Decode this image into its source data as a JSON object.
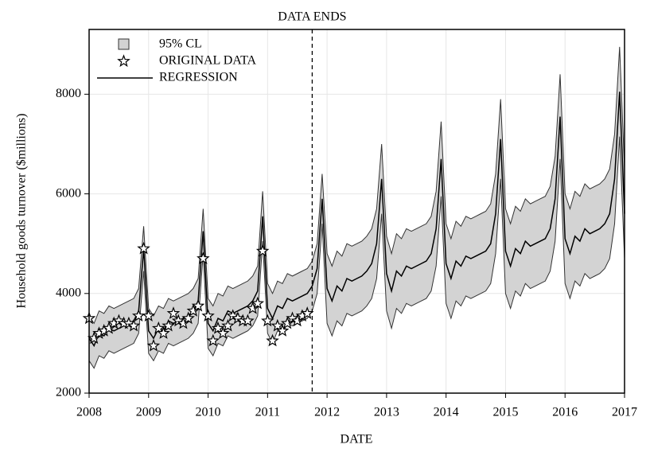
{
  "chart_data": {
    "type": "line",
    "x_label": "DATE",
    "y_label": "Household goods turnover ($millions)",
    "annotation": {
      "text": "DATA ENDS",
      "x": 2011.75
    },
    "xlim": [
      2008,
      2017
    ],
    "xticks": [
      2008,
      2009,
      2010,
      2011,
      2012,
      2013,
      2014,
      2015,
      2016,
      2017
    ],
    "ylim": [
      2000,
      9300
    ],
    "yticks": [
      2000,
      4000,
      6000,
      8000
    ],
    "grid": true,
    "x": [
      2008,
      2008.083,
      2008.167,
      2008.25,
      2008.333,
      2008.417,
      2008.5,
      2008.583,
      2008.667,
      2008.75,
      2008.833,
      2008.917,
      2009,
      2009.083,
      2009.167,
      2009.25,
      2009.333,
      2009.417,
      2009.5,
      2009.583,
      2009.667,
      2009.75,
      2009.833,
      2009.917,
      2010,
      2010.083,
      2010.167,
      2010.25,
      2010.333,
      2010.417,
      2010.5,
      2010.583,
      2010.667,
      2010.75,
      2010.833,
      2010.917,
      2011,
      2011.083,
      2011.167,
      2011.25,
      2011.333,
      2011.417,
      2011.5,
      2011.583,
      2011.667,
      2011.75,
      2011.833,
      2011.917,
      2012,
      2012.083,
      2012.167,
      2012.25,
      2012.333,
      2012.417,
      2012.5,
      2012.583,
      2012.667,
      2012.75,
      2012.833,
      2012.917,
      2013,
      2013.083,
      2013.167,
      2013.25,
      2013.333,
      2013.417,
      2013.5,
      2013.583,
      2013.667,
      2013.75,
      2013.833,
      2013.917,
      2014,
      2014.083,
      2014.167,
      2014.25,
      2014.333,
      2014.417,
      2014.5,
      2014.583,
      2014.667,
      2014.75,
      2014.833,
      2014.917,
      2015,
      2015.083,
      2015.167,
      2015.25,
      2015.333,
      2015.417,
      2015.5,
      2015.583,
      2015.667,
      2015.75,
      2015.833,
      2015.917,
      2016,
      2016.083,
      2016.167,
      2016.25,
      2016.333,
      2016.417,
      2016.5,
      2016.583,
      2016.667,
      2016.75,
      2016.833,
      2016.917,
      2017
    ],
    "series": [
      {
        "name": "95% CL",
        "color": "#d3d3d3",
        "lower": [
          2650,
          2500,
          2750,
          2700,
          2850,
          2800,
          2850,
          2900,
          2950,
          3000,
          3200,
          4450,
          2800,
          2650,
          2850,
          2800,
          3000,
          2950,
          3000,
          3050,
          3100,
          3200,
          3400,
          4800,
          2900,
          2750,
          3000,
          2950,
          3150,
          3100,
          3150,
          3200,
          3250,
          3350,
          3550,
          5050,
          3200,
          3000,
          3250,
          3200,
          3400,
          3350,
          3400,
          3450,
          3500,
          3650,
          4000,
          5400,
          3400,
          3150,
          3450,
          3350,
          3600,
          3550,
          3600,
          3650,
          3750,
          3900,
          4300,
          5600,
          3650,
          3300,
          3700,
          3600,
          3800,
          3750,
          3800,
          3850,
          3900,
          4050,
          4550,
          5950,
          3800,
          3500,
          3850,
          3750,
          3950,
          3900,
          3950,
          4000,
          4050,
          4200,
          4800,
          6300,
          4000,
          3700,
          4050,
          3950,
          4200,
          4100,
          4150,
          4200,
          4250,
          4450,
          5050,
          6700,
          4200,
          3900,
          4250,
          4150,
          4400,
          4300,
          4350,
          4400,
          4500,
          4700,
          5400,
          7150,
          4700
        ],
        "upper": [
          3550,
          3400,
          3650,
          3600,
          3750,
          3700,
          3750,
          3800,
          3850,
          3900,
          4100,
          5350,
          3700,
          3550,
          3750,
          3700,
          3900,
          3850,
          3900,
          3950,
          4000,
          4100,
          4300,
          5700,
          3900,
          3750,
          4000,
          3950,
          4150,
          4100,
          4150,
          4200,
          4250,
          4350,
          4550,
          6050,
          4200,
          4000,
          4250,
          4200,
          4400,
          4350,
          4400,
          4450,
          4500,
          4650,
          5000,
          6400,
          4800,
          4550,
          4850,
          4750,
          5000,
          4950,
          5000,
          5050,
          5150,
          5300,
          5700,
          7000,
          5150,
          4800,
          5200,
          5100,
          5300,
          5250,
          5300,
          5350,
          5400,
          5550,
          6050,
          7450,
          5400,
          5100,
          5450,
          5350,
          5550,
          5500,
          5550,
          5600,
          5650,
          5800,
          6400,
          7900,
          5700,
          5400,
          5750,
          5650,
          5900,
          5800,
          5850,
          5900,
          5950,
          6150,
          6750,
          8400,
          6000,
          5700,
          6050,
          5950,
          6200,
          6100,
          6150,
          6200,
          6300,
          6500,
          7200,
          8950,
          6500
        ]
      },
      {
        "name": "ORIGINAL DATA",
        "color": "#000000",
        "x": [
          2008,
          2008.083,
          2008.167,
          2008.25,
          2008.333,
          2008.417,
          2008.5,
          2008.583,
          2008.667,
          2008.75,
          2008.833,
          2008.917,
          2009,
          2009.083,
          2009.167,
          2009.25,
          2009.333,
          2009.417,
          2009.5,
          2009.583,
          2009.667,
          2009.75,
          2009.833,
          2009.917,
          2010,
          2010.083,
          2010.167,
          2010.25,
          2010.333,
          2010.417,
          2010.5,
          2010.583,
          2010.667,
          2010.75,
          2010.833,
          2010.917,
          2011,
          2011.083,
          2011.167,
          2011.25,
          2011.333,
          2011.417,
          2011.5,
          2011.583,
          2011.667
        ],
        "values": [
          3500,
          3100,
          3200,
          3250,
          3300,
          3400,
          3450,
          3400,
          3400,
          3350,
          3550,
          4900,
          3550,
          2950,
          3300,
          3200,
          3350,
          3600,
          3450,
          3400,
          3500,
          3650,
          3750,
          4700,
          3550,
          3050,
          3300,
          3200,
          3350,
          3550,
          3500,
          3450,
          3450,
          3700,
          3800,
          4850,
          3450,
          3050,
          3350,
          3250,
          3400,
          3500,
          3450,
          3550,
          3600
        ]
      },
      {
        "name": "REGRESSION",
        "color": "#000000",
        "values": [
          3100,
          2950,
          3200,
          3150,
          3300,
          3250,
          3300,
          3350,
          3400,
          3450,
          3650,
          4900,
          3250,
          3100,
          3300,
          3250,
          3450,
          3400,
          3450,
          3500,
          3550,
          3650,
          3850,
          5250,
          3400,
          3250,
          3500,
          3450,
          3650,
          3600,
          3650,
          3700,
          3750,
          3850,
          4050,
          5550,
          3700,
          3500,
          3750,
          3700,
          3900,
          3850,
          3900,
          3950,
          4000,
          4150,
          4500,
          5900,
          4100,
          3850,
          4150,
          4050,
          4300,
          4250,
          4300,
          4350,
          4450,
          4600,
          5000,
          6300,
          4400,
          4050,
          4450,
          4350,
          4550,
          4500,
          4550,
          4600,
          4650,
          4800,
          5300,
          6700,
          4600,
          4300,
          4650,
          4550,
          4750,
          4700,
          4750,
          4800,
          4850,
          5000,
          5600,
          7100,
          4850,
          4550,
          4900,
          4800,
          5050,
          4950,
          5000,
          5050,
          5100,
          5300,
          5900,
          7550,
          5100,
          4800,
          5150,
          5050,
          5300,
          5200,
          5250,
          5300,
          5400,
          5600,
          6300,
          8050,
          5600
        ]
      }
    ]
  }
}
